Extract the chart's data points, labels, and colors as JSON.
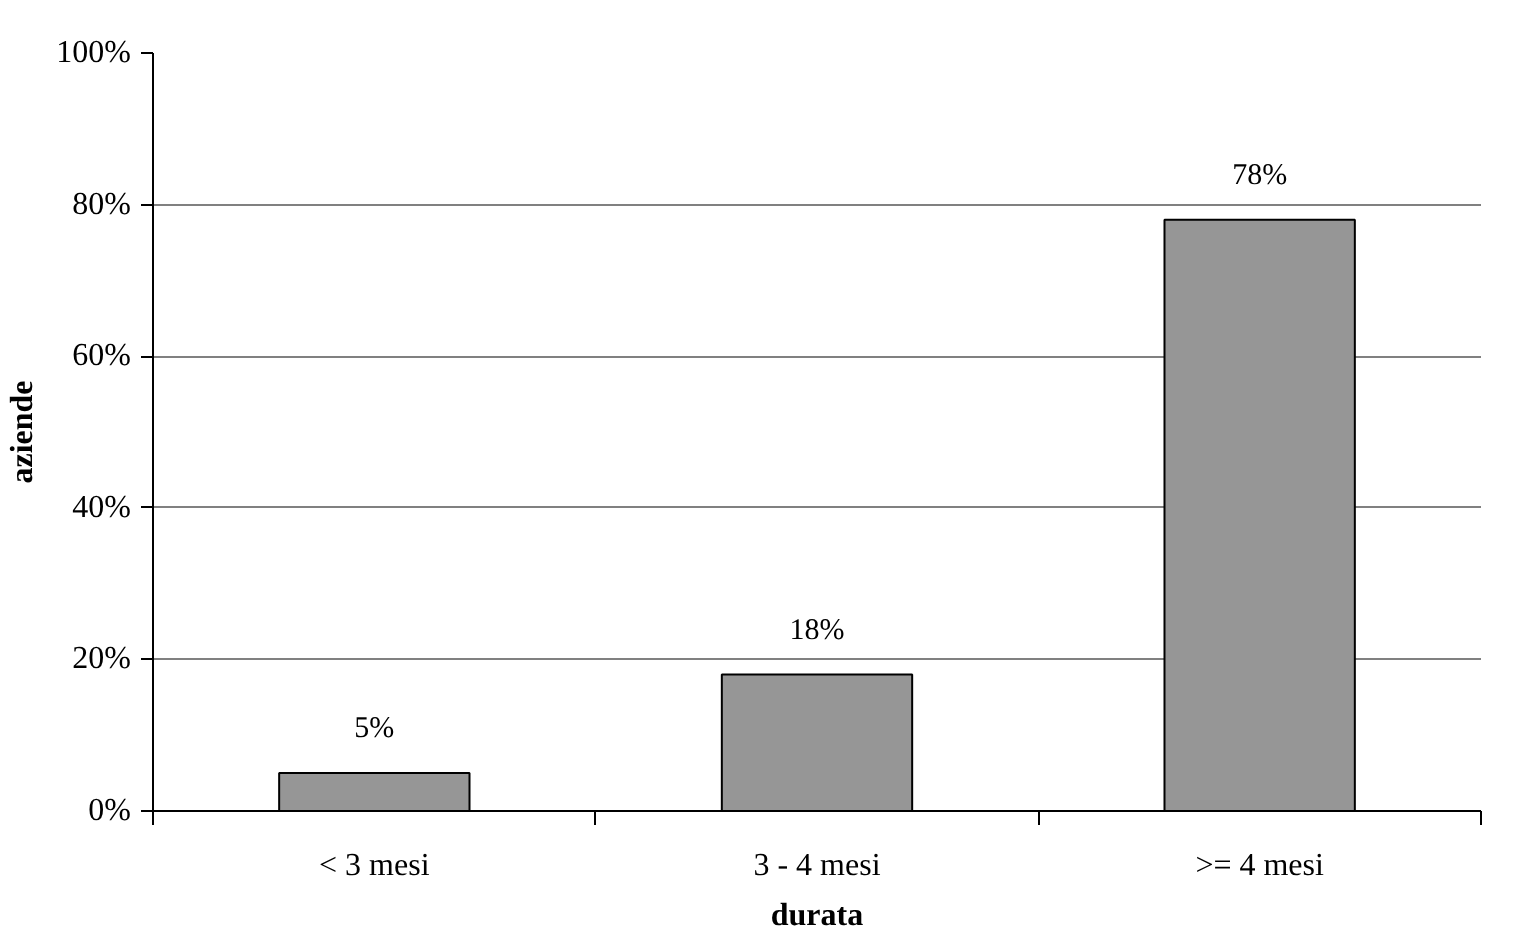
{
  "chart_data": {
    "type": "bar",
    "xlabel": "durata",
    "ylabel": "aziende",
    "categories": [
      "< 3 mesi",
      "3 - 4 mesi",
      ">= 4 mesi"
    ],
    "values": [
      5,
      18,
      78
    ],
    "value_labels": [
      "5%",
      "18%",
      "78%"
    ],
    "color": "#969696",
    "ylim": [
      0,
      100
    ],
    "yticks": [
      {
        "value": 0,
        "label": "0%"
      },
      {
        "value": 20,
        "label": "20%"
      },
      {
        "value": 40,
        "label": "40%"
      },
      {
        "value": 60,
        "label": "60%"
      },
      {
        "value": 80,
        "label": "80%"
      },
      {
        "value": 100,
        "label": "100%"
      }
    ],
    "grid": "y"
  }
}
